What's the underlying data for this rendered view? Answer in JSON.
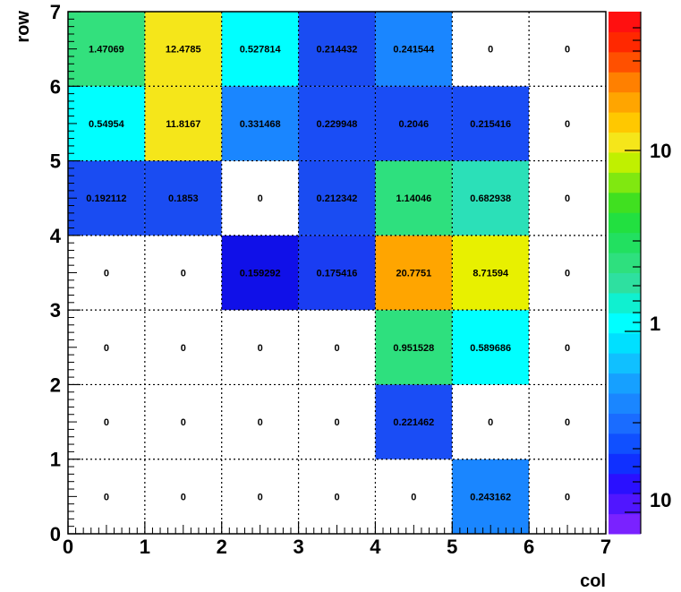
{
  "chart_data": {
    "type": "heatmap",
    "title": "",
    "xlabel": "col",
    "ylabel": "row",
    "xlim": [
      0,
      7
    ],
    "ylim": [
      0,
      7
    ],
    "x_ticks": [
      "0",
      "1",
      "2",
      "3",
      "4",
      "5",
      "6",
      "7"
    ],
    "y_ticks": [
      "0",
      "1",
      "2",
      "3",
      "4",
      "5",
      "6",
      "7"
    ],
    "grid": true,
    "z_scale": "log",
    "palette_labels": [
      "10",
      "1",
      "10"
    ],
    "rows": [
      {
        "row": 0,
        "values": [
          0,
          0,
          0,
          0,
          0,
          0.243162,
          0
        ],
        "labels": [
          "0",
          "0",
          "0",
          "0",
          "0",
          "0.243162",
          "0"
        ]
      },
      {
        "row": 1,
        "values": [
          0,
          0,
          0,
          0,
          0.221462,
          0,
          0
        ],
        "labels": [
          "0",
          "0",
          "0",
          "0",
          "0.221462",
          "0",
          "0"
        ]
      },
      {
        "row": 2,
        "values": [
          0,
          0,
          0,
          0,
          0.951528,
          0.589686,
          0
        ],
        "labels": [
          "0",
          "0",
          "0",
          "0",
          "0.951528",
          "0.589686",
          "0"
        ]
      },
      {
        "row": 3,
        "values": [
          0,
          0,
          0.159292,
          0.175416,
          20.7751,
          8.71594,
          0
        ],
        "labels": [
          "0",
          "0",
          "0.159292",
          "0.175416",
          "20.7751",
          "8.71594",
          "0"
        ]
      },
      {
        "row": 4,
        "values": [
          0.192112,
          0.1853,
          0,
          0.212342,
          1.14046,
          0.682938,
          0
        ],
        "labels": [
          "0.192112",
          "0.1853",
          "0",
          "0.212342",
          "1.14046",
          "0.682938",
          "0"
        ]
      },
      {
        "row": 5,
        "values": [
          0.54954,
          11.8167,
          0.331468,
          0.229948,
          0.2046,
          0.215416,
          0
        ],
        "labels": [
          "0.54954",
          "11.8167",
          "0.331468",
          "0.229948",
          "0.2046",
          "0.215416",
          "0"
        ]
      },
      {
        "row": 6,
        "values": [
          1.47069,
          12.4785,
          0.527814,
          0.214432,
          0.241544,
          0,
          0
        ],
        "labels": [
          "1.47069",
          "12.4785",
          "0.527814",
          "0.214432",
          "0.241544",
          "0",
          "0"
        ]
      }
    ],
    "cell_colors": [
      [
        "#ffffff",
        "#ffffff",
        "#ffffff",
        "#ffffff",
        "#ffffff",
        "#1a86ff",
        "#ffffff"
      ],
      [
        "#ffffff",
        "#ffffff",
        "#ffffff",
        "#ffffff",
        "#1a4df5",
        "#ffffff",
        "#ffffff"
      ],
      [
        "#ffffff",
        "#ffffff",
        "#ffffff",
        "#ffffff",
        "#2ee07e",
        "#00ffff",
        "#ffffff"
      ],
      [
        "#ffffff",
        "#ffffff",
        "#1010e8",
        "#1a3df2",
        "#ffa500",
        "#e8f000",
        "#ffffff"
      ],
      [
        "#1a4cf2",
        "#1a4cf2",
        "#ffffff",
        "#1a4cf2",
        "#2ee07e",
        "#2be0b8",
        "#ffffff"
      ],
      [
        "#00ffff",
        "#f5e61a",
        "#1a86ff",
        "#1a4df5",
        "#1a4df5",
        "#1a4df5",
        "#ffffff"
      ],
      [
        "#33e07d",
        "#f5e61a",
        "#00ffff",
        "#1a4cf2",
        "#1a86ff",
        "#ffffff",
        "#ffffff"
      ]
    ],
    "palette_colors": [
      "#7a22ff",
      "#5016ff",
      "#2a10ff",
      "#1030ff",
      "#1050ff",
      "#1a6cff",
      "#1a86ff",
      "#16a0ff",
      "#10c0ff",
      "#00e0ff",
      "#00ffff",
      "#10f0d0",
      "#2ee0a0",
      "#2ee07e",
      "#22e060",
      "#22e040",
      "#40e020",
      "#80e810",
      "#c0f000",
      "#f5e61a",
      "#ffc800",
      "#ffa500",
      "#ff8000",
      "#ff5000",
      "#ff2800",
      "#ff1010"
    ]
  }
}
